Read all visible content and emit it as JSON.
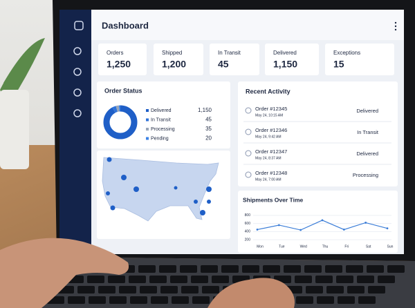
{
  "header": {
    "title": "Dashboard"
  },
  "stats": [
    {
      "label": "Orders",
      "value": "1,250"
    },
    {
      "label": "Shipped",
      "value": "1,200"
    },
    {
      "label": "In Transit",
      "value": "45"
    },
    {
      "label": "Delivered",
      "value": "1,150"
    },
    {
      "label": "Exceptions",
      "value": "15"
    }
  ],
  "order_status": {
    "title": "Order Status",
    "type": "pie",
    "categories": [
      "Delivered",
      "In Transit",
      "Processing",
      "Pending"
    ],
    "values": [
      1150,
      45,
      35,
      20
    ],
    "value_labels": [
      "1,150",
      "45",
      "35",
      "20"
    ],
    "colors": [
      "#1f5fc7",
      "#2f73d9",
      "#9aa6b8",
      "#3b82e6"
    ]
  },
  "recent_activity": {
    "title": "Recent Activity",
    "items": [
      {
        "order": "Order #12345",
        "time": "May 24, 10:15 AM",
        "status": "Delivered"
      },
      {
        "order": "Order #12346",
        "time": "May 24, 9:42 AM",
        "status": "In Transit"
      },
      {
        "order": "Order #12347",
        "time": "May 24, 8:37 AM",
        "status": "Delivered"
      },
      {
        "order": "Order #12348",
        "time": "May 24, 7:00 AM",
        "status": "Processing"
      }
    ]
  },
  "shipments": {
    "title": "Shipments Over Time",
    "type": "line",
    "categories": [
      "Mon",
      "Tue",
      "Wed",
      "Thu",
      "Fri",
      "Sat",
      "Sun"
    ],
    "values": [
      450,
      560,
      440,
      680,
      450,
      620,
      480
    ],
    "color": "#3b7dd8",
    "ylim": [
      100,
      900
    ],
    "yticks": [
      200,
      400,
      600,
      800
    ]
  }
}
